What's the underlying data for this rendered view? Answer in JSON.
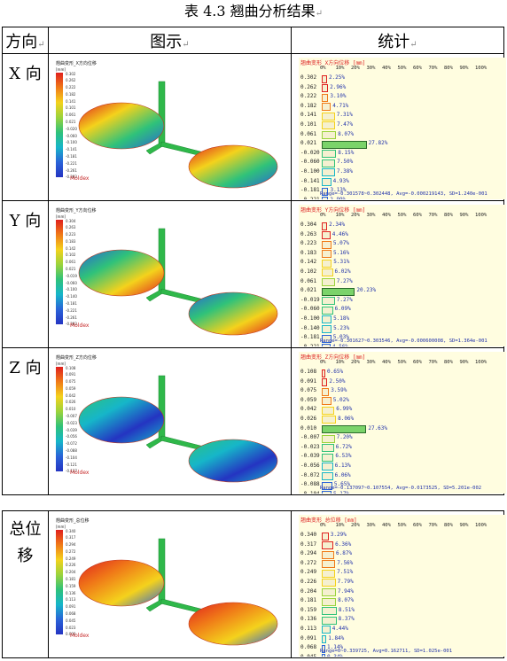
{
  "caption": "表 4.3 翘曲分析结果",
  "header": {
    "col1": "方向",
    "col2": "图示",
    "col3": "统计"
  },
  "cell_mark": "↵",
  "colorbar_colors": [
    "#e0201e",
    "#f07a18",
    "#f4d21c",
    "#9bd33c",
    "#2fc27a",
    "#16b6c9",
    "#2a63d8",
    "#2434c2"
  ],
  "brand": "Moldex",
  "pct_axis": [
    "0%",
    "10%",
    "20%",
    "30%",
    "40%",
    "50%",
    "60%",
    "70%",
    "80%",
    "90%",
    "100%"
  ],
  "rows": [
    {
      "dir": "X 向",
      "sim_title": "翘曲变形_X方向位移",
      "sim_unit": "[mm]",
      "stat_title": "翘曲变形_X方向位移 [mm]",
      "chart_data": {
        "type": "bar",
        "categories": [
          "0.302",
          "0.262",
          "0.222",
          "0.182",
          "0.141",
          "0.101",
          "0.061",
          "0.021",
          "-0.020",
          "-0.060",
          "-0.100",
          "-0.141",
          "-0.181",
          "-0.221",
          "-0.261",
          "-0.302"
        ],
        "values": [
          2.25,
          2.96,
          3.1,
          4.71,
          7.31,
          7.47,
          8.07,
          27.82,
          8.15,
          7.5,
          7.38,
          4.93,
          3.13,
          2.99,
          2.24,
          null
        ],
        "labels": [
          "2.25%",
          "2.96%",
          "3.10%",
          "4.71%",
          "7.31%",
          "7.47%",
          "8.07%",
          "27.82%",
          "8.15%",
          "7.50%",
          "7.38%",
          "4.93%",
          "3.13%",
          "2.99%",
          "2.24%",
          ""
        ],
        "xlim": [
          0,
          100
        ]
      },
      "range_text": "Range=-0.301578~0.302448, Avg=-0.000219143, SD=1.240e-001",
      "highlight": [
        7
      ]
    },
    {
      "dir": "Y 向",
      "sim_title": "翘曲变形_Y方向位移",
      "sim_unit": "[mm]",
      "stat_title": "翘曲变形_Y方向位移 [mm]",
      "chart_data": {
        "type": "bar",
        "categories": [
          "0.304",
          "0.263",
          "0.223",
          "0.183",
          "0.142",
          "0.102",
          "0.061",
          "0.021",
          "-0.019",
          "-0.060",
          "-0.100",
          "-0.140",
          "-0.181",
          "-0.221",
          "-0.261",
          "-0.302"
        ],
        "values": [
          2.34,
          4.46,
          5.07,
          5.16,
          5.31,
          6.02,
          7.27,
          20.23,
          7.27,
          6.09,
          5.18,
          5.23,
          5.03,
          4.56,
          2.77,
          null
        ],
        "labels": [
          "2.34%",
          "4.46%",
          "5.07%",
          "5.16%",
          "5.31%",
          "6.02%",
          "7.27%",
          "20.23%",
          "7.27%",
          "6.09%",
          "5.18%",
          "5.23%",
          "5.03%",
          "4.56%",
          "2.77%",
          ""
        ],
        "xlim": [
          0,
          100
        ]
      },
      "range_text": "Range=-0.301627~0.303546, Avg=-0.000600008, SD=1.364e-001",
      "highlight": [
        7
      ]
    },
    {
      "dir": "Z 向",
      "sim_title": "翘曲变形_Z方向位移",
      "sim_unit": "[mm]",
      "stat_title": "翘曲变形_Z方向位移 [mm]",
      "chart_data": {
        "type": "bar",
        "categories": [
          "0.108",
          "0.091",
          "0.075",
          "0.059",
          "0.042",
          "0.026",
          "0.010",
          "-0.007",
          "-0.023",
          "-0.039",
          "-0.056",
          "-0.072",
          "-0.088",
          "-0.104",
          "-0.121",
          "-0.137"
        ],
        "values": [
          0.65,
          2.5,
          3.59,
          5.02,
          6.99,
          8.06,
          27.63,
          7.2,
          6.72,
          6.53,
          6.13,
          6.06,
          5.65,
          5.17,
          2.09,
          null
        ],
        "labels": [
          "0.65%",
          "2.50%",
          "3.59%",
          "5.02%",
          "6.99%",
          "8.06%",
          "27.63%",
          "7.20%",
          "6.72%",
          "6.53%",
          "6.13%",
          "6.06%",
          "5.65%",
          "5.17%",
          "2.09%",
          ""
        ],
        "xlim": [
          0,
          100
        ]
      },
      "range_text": "Range=-0.137097~0.107554, Avg=-0.0173525, SD=5.201e-002",
      "highlight": [
        6
      ]
    },
    {
      "dir": "总位移",
      "sim_title": "翘曲变形_总位移",
      "sim_unit": "[mm]",
      "stat_title": "翘曲变形_总位移 [mm]",
      "chart_data": {
        "type": "bar",
        "categories": [
          "0.340",
          "0.317",
          "0.294",
          "0.272",
          "0.249",
          "0.226",
          "0.204",
          "0.181",
          "0.159",
          "0.136",
          "0.113",
          "0.091",
          "0.068",
          "0.045",
          "0.023",
          "0.000"
        ],
        "values": [
          3.29,
          6.36,
          6.87,
          7.56,
          7.51,
          7.79,
          7.94,
          8.07,
          8.51,
          8.37,
          4.44,
          1.84,
          1.14,
          0.34,
          19.97,
          null
        ],
        "labels": [
          "3.29%",
          "6.36%",
          "6.87%",
          "7.56%",
          "7.51%",
          "7.79%",
          "7.94%",
          "8.07%",
          "8.51%",
          "8.37%",
          "4.44%",
          "1.84%",
          "1.14%",
          "0.34%",
          "19.97%",
          ""
        ],
        "xlim": [
          0,
          100
        ]
      },
      "range_text": "Range=0~0.339725, Avg=0.162711, SD=1.025e-001",
      "highlight": [
        14
      ]
    }
  ]
}
